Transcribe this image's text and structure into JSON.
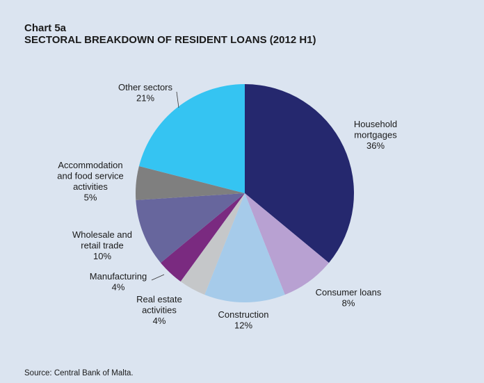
{
  "header": {
    "chart_number": "Chart 5a",
    "title": "SECTORAL BREAKDOWN OF RESIDENT LOANS (2012 H1)"
  },
  "footer": {
    "source": "Source: Central Bank of Malta."
  },
  "chart_data": {
    "type": "pie",
    "title": "SECTORAL BREAKDOWN OF RESIDENT LOANS (2012 H1)",
    "unit": "%",
    "start_angle_deg": 0,
    "direction": "clockwise",
    "slices": [
      {
        "name": "Household mortgages",
        "label_lines": [
          "Household",
          "mortgages",
          "36%"
        ],
        "value": 36,
        "color": "#25286e"
      },
      {
        "name": "Consumer loans",
        "label_lines": [
          "Consumer loans",
          "8%"
        ],
        "value": 8,
        "color": "#b8a1d2"
      },
      {
        "name": "Construction",
        "label_lines": [
          "Construction",
          "12%"
        ],
        "value": 12,
        "color": "#a6cbea"
      },
      {
        "name": "Real estate activities",
        "label_lines": [
          "Real estate",
          "activities",
          "4%"
        ],
        "value": 4,
        "color": "#c5c7c9"
      },
      {
        "name": "Manufacturing",
        "label_lines": [
          "Manufacturing",
          "4%"
        ],
        "value": 4,
        "color": "#7a2a80"
      },
      {
        "name": "Wholesale and retail trade",
        "label_lines": [
          "Wholesale and",
          "retail trade",
          "10%"
        ],
        "value": 10,
        "color": "#67669d"
      },
      {
        "name": "Accommodation and food service activities",
        "label_lines": [
          "Accommodation",
          "and food service",
          "activities",
          "5%"
        ],
        "value": 5,
        "color": "#7f7f7f"
      },
      {
        "name": "Other sectors",
        "label_lines": [
          "Other sectors",
          "21%"
        ],
        "value": 21,
        "color": "#35c4f2"
      }
    ]
  }
}
